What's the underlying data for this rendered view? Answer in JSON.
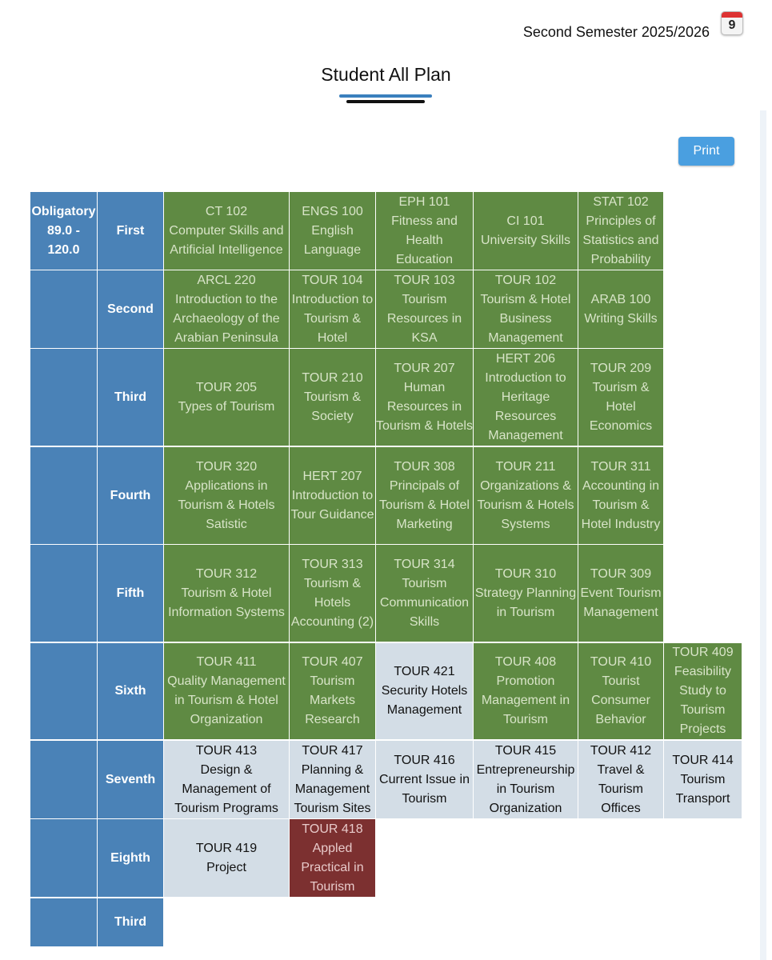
{
  "header": {
    "semester": "Second Semester 2025/2026",
    "calendar_day": "9",
    "title": "Student All Plan",
    "print_label": "Print"
  },
  "colors": {
    "header_blue": "#4a82b7",
    "passed_green": "#5f8a43",
    "current_gray": "#d3dde6",
    "failed_red": "#7c3030",
    "print_button": "#4a9fe0"
  },
  "plan": {
    "obligatory_label": "Obligatory 89.0 - 120.0",
    "levels": [
      {
        "label": "First",
        "courses": [
          {
            "code": "CT 102",
            "name": "Computer Skills and Artificial Intelligence",
            "status": "done"
          },
          {
            "code": "ENGS 100",
            "name": "English Language",
            "status": "done"
          },
          {
            "code": "EPH 101",
            "name": "Fitness and Health Education",
            "status": "done"
          },
          {
            "code": "CI 101",
            "name": "University Skills",
            "status": "done"
          },
          {
            "code": "STAT 102",
            "name": "Principles of Statistics and Probability",
            "status": "done"
          }
        ]
      },
      {
        "label": "Second",
        "courses": [
          {
            "code": "ARCL 220",
            "name": "Introduction to the Archaeology of the Arabian Peninsula",
            "status": "done"
          },
          {
            "code": "TOUR 104",
            "name": "Introduction to Tourism & Hotel",
            "status": "done"
          },
          {
            "code": "TOUR 103",
            "name": "Tourism Resources in KSA",
            "status": "done"
          },
          {
            "code": "TOUR 102",
            "name": "Tourism & Hotel Business Management",
            "status": "done"
          },
          {
            "code": "ARAB 100",
            "name": "Writing Skills",
            "status": "done"
          }
        ]
      },
      {
        "label": "Third",
        "courses": [
          {
            "code": "TOUR 205",
            "name": "Types of Tourism",
            "status": "done"
          },
          {
            "code": "TOUR 210",
            "name": "Tourism & Society",
            "status": "done"
          },
          {
            "code": "TOUR 207",
            "name": "Human Resources in Tourism & Hotels",
            "status": "done"
          },
          {
            "code": "HERT 206",
            "name": "Introduction to Heritage Resources Management",
            "status": "done"
          },
          {
            "code": "TOUR 209",
            "name": "Tourism & Hotel Economics",
            "status": "done"
          }
        ]
      },
      {
        "label": "Fourth",
        "courses": [
          {
            "code": "TOUR 320",
            "name": "Applications in Tourism & Hotels Satistic",
            "status": "done"
          },
          {
            "code": "HERT 207",
            "name": "Introduction to Tour Guidance",
            "status": "done"
          },
          {
            "code": "TOUR 308",
            "name": "Principals of Tourism & Hotel Marketing",
            "status": "done"
          },
          {
            "code": "TOUR 211",
            "name": "Organizations & Tourism & Hotels Systems",
            "status": "done"
          },
          {
            "code": "TOUR 311",
            "name": "Accounting in Tourism & Hotel Industry",
            "status": "done"
          }
        ]
      },
      {
        "label": "Fifth",
        "courses": [
          {
            "code": "TOUR 312",
            "name": "Tourism & Hotel Information Systems",
            "status": "done"
          },
          {
            "code": "TOUR 313",
            "name": "Tourism & Hotels Accounting (2)",
            "status": "done"
          },
          {
            "code": "TOUR 314",
            "name": "Tourism Communication Skills",
            "status": "done"
          },
          {
            "code": "TOUR 310",
            "name": "Strategy Planning in Tourism",
            "status": "done"
          },
          {
            "code": "TOUR 309",
            "name": "Event Tourism Management",
            "status": "done"
          }
        ]
      },
      {
        "label": "Sixth",
        "courses": [
          {
            "code": "TOUR 411",
            "name": "Quality Management in Tourism & Hotel Organization",
            "status": "done"
          },
          {
            "code": "TOUR 407",
            "name": "Tourism Markets Research",
            "status": "done"
          },
          {
            "code": "TOUR 421",
            "name": "Security Hotels Management",
            "status": "current"
          },
          {
            "code": "TOUR 408",
            "name": "Promotion Management in Tourism",
            "status": "done"
          },
          {
            "code": "TOUR 410",
            "name": "Tourist Consumer Behavior",
            "status": "done"
          },
          {
            "code": "TOUR 409",
            "name": "Feasibility Study to Tourism Projects",
            "status": "done"
          }
        ]
      },
      {
        "label": "Seventh",
        "courses": [
          {
            "code": "TOUR 413",
            "name": "Design & Management of Tourism Programs",
            "status": "current"
          },
          {
            "code": "TOUR 417",
            "name": "Planning & Management Tourism Sites",
            "status": "current"
          },
          {
            "code": "TOUR 416",
            "name": "Current Issue in Tourism",
            "status": "current"
          },
          {
            "code": "TOUR 415",
            "name": "Entrepreneurship in Tourism Organization",
            "status": "current"
          },
          {
            "code": "TOUR 412",
            "name": "Travel & Tourism Offices",
            "status": "current"
          },
          {
            "code": "TOUR 414",
            "name": "Tourism Transport",
            "status": "current"
          }
        ]
      },
      {
        "label": "Eighth",
        "courses": [
          {
            "code": "TOUR 419",
            "name": "Project",
            "status": "current"
          },
          {
            "code": "TOUR 418",
            "name": "Appled Practical in Tourism",
            "status": "failed"
          }
        ]
      },
      {
        "label": "Third",
        "courses": []
      }
    ]
  }
}
